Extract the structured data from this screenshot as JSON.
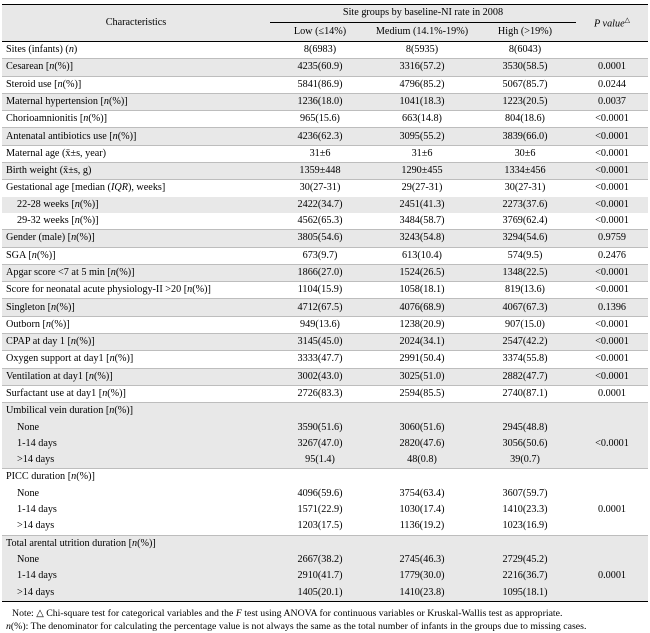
{
  "header": {
    "characteristics": "Characteristics",
    "group_title": "Site groups by baseline-NI rate in 2008",
    "low": "Low (≤14%)",
    "medium": "Medium (14.1%-19%)",
    "high": "High (>19%)",
    "pvalue": "P value",
    "pvalue_mark": "△"
  },
  "rows": [
    {
      "label": "Sites (infants) (n)",
      "low": "8(6983)",
      "medium": "8(5935)",
      "high": "8(6043)",
      "p": ""
    },
    {
      "label": "Cesarean [n(%)]",
      "low": "4235(60.9)",
      "medium": "3316(57.2)",
      "high": "3530(58.5)",
      "p": "0.0001"
    },
    {
      "label": "Steroid use [n(%)]",
      "low": "5841(86.9)",
      "medium": "4796(85.2)",
      "high": "5067(85.7)",
      "p": "0.0244"
    },
    {
      "label": "Maternal hypertension [n(%)]",
      "low": "1236(18.0)",
      "medium": "1041(18.3)",
      "high": "1223(20.5)",
      "p": "0.0037"
    },
    {
      "label": "Chorioamnionitis [n(%)]",
      "low": "965(15.6)",
      "medium": "663(14.8)",
      "high": "804(18.6)",
      "p": "<0.0001"
    },
    {
      "label": "Antenatal antibiotics use [n(%)]",
      "low": "4236(62.3)",
      "medium": "3095(55.2)",
      "high": "3839(66.0)",
      "p": "<0.0001"
    },
    {
      "label": "Maternal age (x̄±s, year)",
      "low": "31±6",
      "medium": "31±6",
      "high": "30±6",
      "p": "<0.0001"
    },
    {
      "label": "Birth weight (x̄±s, g)",
      "low": "1359±448",
      "medium": "1290±455",
      "high": "1334±456",
      "p": "<0.0001"
    },
    {
      "label": "Gestational age [median (IQR), weeks]",
      "low": "30(27-31)",
      "medium": "29(27-31)",
      "high": "30(27-31)",
      "p": "<0.0001"
    },
    {
      "label": "22-28 weeks [n(%)]",
      "low": "2422(34.7)",
      "medium": "2451(41.3)",
      "high": "2273(37.6)",
      "p": "<0.0001"
    },
    {
      "label": "29-32 weeks [n(%)]",
      "low": "4562(65.3)",
      "medium": "3484(58.7)",
      "high": "3769(62.4)",
      "p": "<0.0001"
    },
    {
      "label": "Gender (male) [n(%)]",
      "low": "3805(54.6)",
      "medium": "3243(54.8)",
      "high": "3294(54.6)",
      "p": "0.9759"
    },
    {
      "label": "SGA [n(%)]",
      "low": "673(9.7)",
      "medium": "613(10.4)",
      "high": "574(9.5)",
      "p": "0.2476"
    },
    {
      "label": "Apgar score <7 at 5 min [n(%)]",
      "low": "1866(27.0)",
      "medium": "1524(26.5)",
      "high": "1348(22.5)",
      "p": "<0.0001"
    },
    {
      "label": "Score for neonatal acute physiology-II >20 [n(%)]",
      "low": "1104(15.9)",
      "medium": "1058(18.1)",
      "high": "819(13.6)",
      "p": "<0.0001"
    },
    {
      "label": "Singleton [n(%)]",
      "low": "4712(67.5)",
      "medium": "4076(68.9)",
      "high": "4067(67.3)",
      "p": "0.1396"
    },
    {
      "label": "Outborn [n(%)]",
      "low": "949(13.6)",
      "medium": "1238(20.9)",
      "high": "907(15.0)",
      "p": "<0.0001"
    },
    {
      "label": "CPAP at day 1 [n(%)]",
      "low": "3145(45.0)",
      "medium": "2024(34.1)",
      "high": "2547(42.2)",
      "p": "<0.0001"
    },
    {
      "label": "Oxygen support at day1 [n(%)]",
      "low": "3333(47.7)",
      "medium": "2991(50.4)",
      "high": "3374(55.8)",
      "p": "<0.0001"
    },
    {
      "label": "Ventilation at day1 [n(%)]",
      "low": "3002(43.0)",
      "medium": "3025(51.0)",
      "high": "2882(47.7)",
      "p": "<0.0001"
    },
    {
      "label": "Surfactant use at day1 [n(%)]",
      "low": "2726(83.3)",
      "medium": "2594(85.5)",
      "high": "2740(87.1)",
      "p": "0.0001"
    },
    {
      "label": "Umbilical vein duration [n(%)]",
      "low": "",
      "medium": "",
      "high": "",
      "p": ""
    },
    {
      "label": "None",
      "low": "3590(51.6)",
      "medium": "3060(51.6)",
      "high": "2945(48.8)",
      "p": ""
    },
    {
      "label": "1-14 days",
      "low": "3267(47.0)",
      "medium": "2820(47.6)",
      "high": "3056(50.6)",
      "p": "<0.0001"
    },
    {
      "label": ">14 days",
      "low": "95(1.4)",
      "medium": "48(0.8)",
      "high": "39(0.7)",
      "p": ""
    },
    {
      "label": "PICC duration [n(%)]",
      "low": "",
      "medium": "",
      "high": "",
      "p": ""
    },
    {
      "label": "None",
      "low": "4096(59.6)",
      "medium": "3754(63.4)",
      "high": "3607(59.7)",
      "p": ""
    },
    {
      "label": "1-14 days",
      "low": "1571(22.9)",
      "medium": "1030(17.4)",
      "high": "1410(23.3)",
      "p": "0.0001"
    },
    {
      "label": ">14 days",
      "low": "1203(17.5)",
      "medium": "1136(19.2)",
      "high": "1023(16.9)",
      "p": ""
    },
    {
      "label": "Total arental utrition duration [n(%)]",
      "low": "",
      "medium": "",
      "high": "",
      "p": ""
    },
    {
      "label": "None",
      "low": "2667(38.2)",
      "medium": "2745(46.3)",
      "high": "2729(45.2)",
      "p": ""
    },
    {
      "label": "1-14 days",
      "low": "2910(41.7)",
      "medium": "1779(30.0)",
      "high": "2216(36.7)",
      "p": "0.0001"
    },
    {
      "label": ">14 days",
      "low": "1405(20.1)",
      "medium": "1410(23.8)",
      "high": "1095(18.1)",
      "p": ""
    }
  ],
  "note": {
    "line1": "Note: △ Chi-square test for categorical variables and the F test using ANOVA for continuous variables or Kruskal-Wallis test as appropriate.",
    "line2": "n(%): The denominator for calculating the percentage value is not always the same as the total number of infants in the groups due to missing cases."
  }
}
